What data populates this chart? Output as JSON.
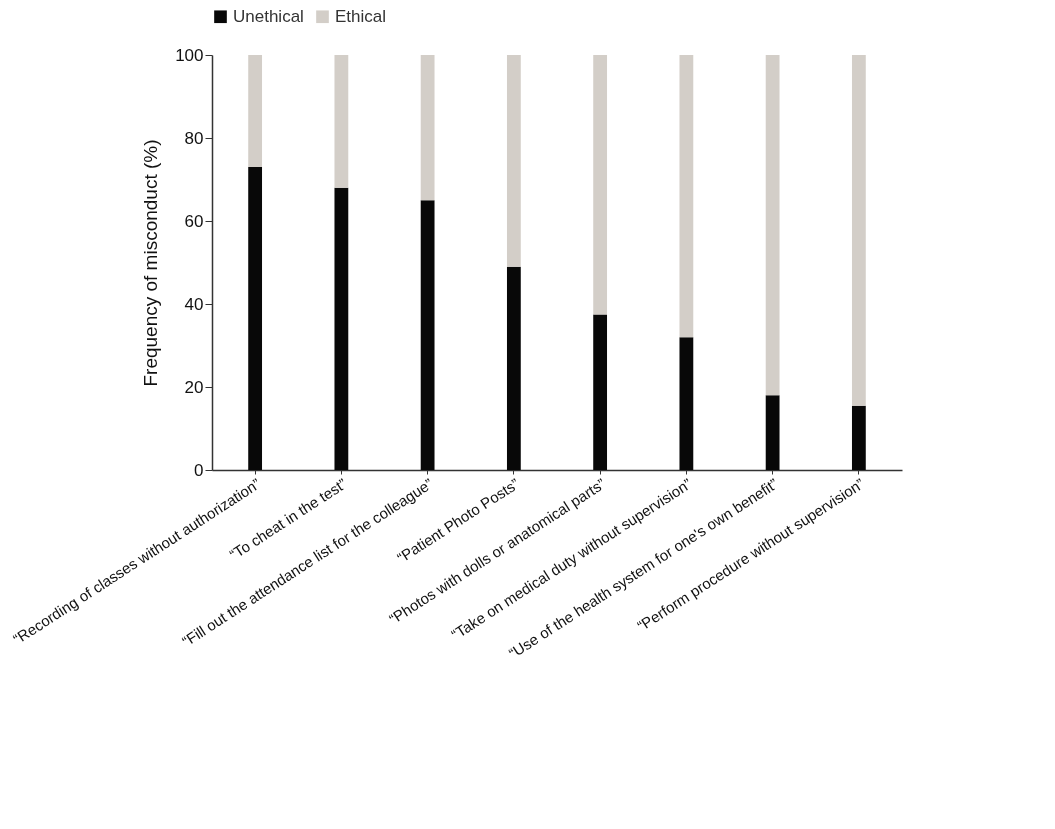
{
  "chart_data": {
    "type": "bar",
    "stacked": true,
    "ylabel": "Frequency of misconduct (%)",
    "categories": [
      "“Recording of classes without authorization”",
      "“To cheat in the test”",
      "“Fill out the attendance list for the colleague”",
      "“Patient Photo Posts”",
      "“Photos with dolls or anatomical parts”",
      "“Take on medical duty without supervision”",
      "“Use of the health system for one's own benefit”",
      "“Perform procedure without supervision”"
    ],
    "series": [
      {
        "name": "Unethical",
        "color": "#080808",
        "values": [
          73,
          68,
          65,
          49,
          37.5,
          32,
          18,
          15.5
        ]
      },
      {
        "name": "Ethical",
        "color": "#d3cec8",
        "values": [
          27,
          32,
          35,
          51,
          62.5,
          68,
          82,
          84.5
        ]
      }
    ],
    "ylim": [
      0,
      100
    ],
    "yticks": [
      0,
      20,
      40,
      60,
      80,
      100
    ],
    "legend": "top"
  }
}
